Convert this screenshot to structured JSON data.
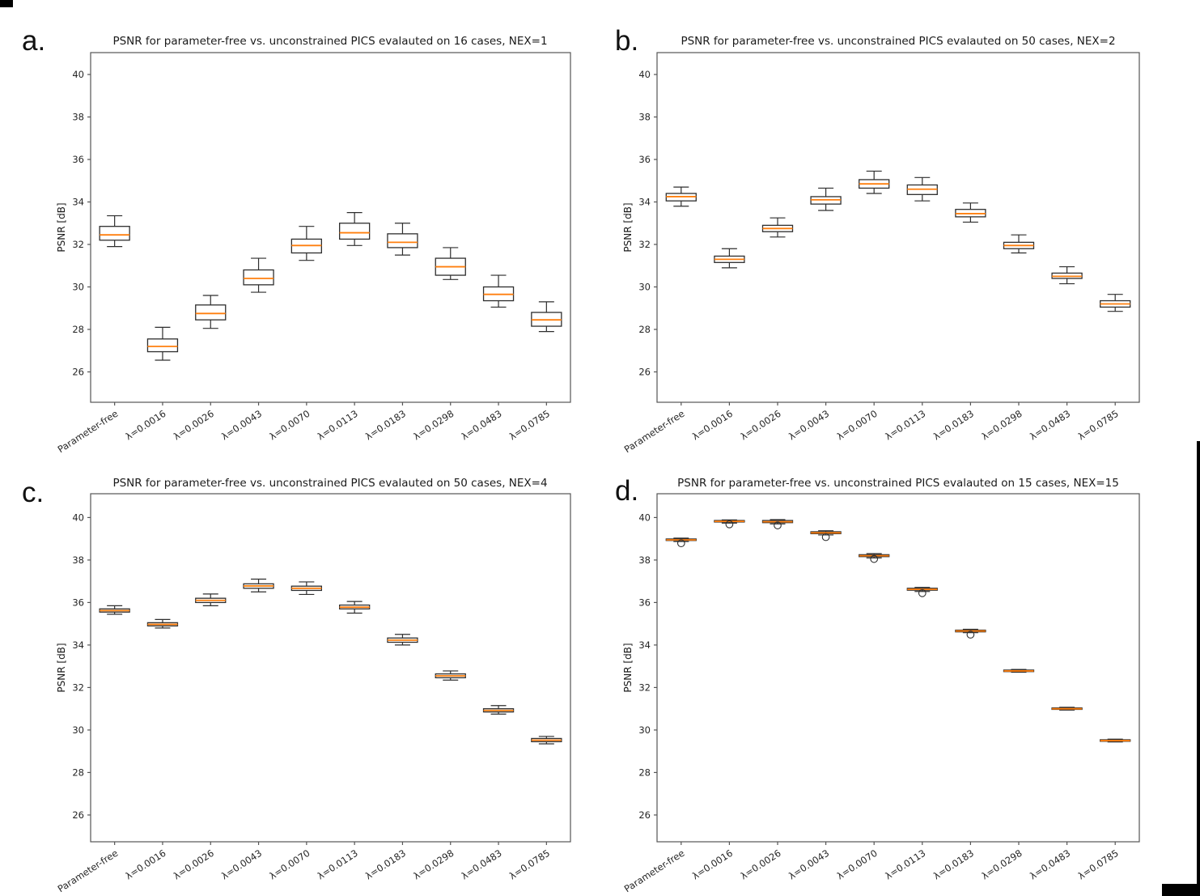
{
  "figure": {
    "background": "#ffffff",
    "spine_color": "#555555",
    "box_edge_color": "#2e2e2e",
    "median_color": "#ff7f0e",
    "text_color": "#1a1a1a"
  },
  "chart_data": [
    {
      "type": "boxplot",
      "panel_letter": "a.",
      "title": "PSNR for parameter-free vs. unconstrained PICS evalauted on 16 cases, NEX=1",
      "ylabel": "PSNR [dB]",
      "ylim": [
        24.57,
        41.03
      ],
      "yticks": [
        26,
        28,
        30,
        32,
        34,
        36,
        38,
        40
      ],
      "grid": false,
      "categories": [
        "Parameter-free",
        "λ=0.0016",
        "λ=0.0026",
        "λ=0.0043",
        "λ=0.0070",
        "λ=0.0113",
        "λ=0.0183",
        "λ=0.0298",
        "λ=0.0483",
        "λ=0.0785"
      ],
      "boxes": [
        {
          "whislo": 31.9,
          "q1": 32.2,
          "med": 32.45,
          "q3": 32.85,
          "whishi": 33.35,
          "fliers": []
        },
        {
          "whislo": 26.55,
          "q1": 26.95,
          "med": 27.2,
          "q3": 27.55,
          "whishi": 28.1,
          "fliers": []
        },
        {
          "whislo": 28.05,
          "q1": 28.45,
          "med": 28.75,
          "q3": 29.15,
          "whishi": 29.6,
          "fliers": []
        },
        {
          "whislo": 29.75,
          "q1": 30.1,
          "med": 30.4,
          "q3": 30.8,
          "whishi": 31.35,
          "fliers": []
        },
        {
          "whislo": 31.25,
          "q1": 31.6,
          "med": 31.95,
          "q3": 32.25,
          "whishi": 32.85,
          "fliers": []
        },
        {
          "whislo": 31.95,
          "q1": 32.25,
          "med": 32.55,
          "q3": 33.0,
          "whishi": 33.5,
          "fliers": []
        },
        {
          "whislo": 31.5,
          "q1": 31.85,
          "med": 32.1,
          "q3": 32.5,
          "whishi": 33.0,
          "fliers": []
        },
        {
          "whislo": 30.35,
          "q1": 30.55,
          "med": 30.95,
          "q3": 31.35,
          "whishi": 31.85,
          "fliers": []
        },
        {
          "whislo": 29.05,
          "q1": 29.35,
          "med": 29.65,
          "q3": 30.0,
          "whishi": 30.55,
          "fliers": []
        },
        {
          "whislo": 27.9,
          "q1": 28.15,
          "med": 28.45,
          "q3": 28.8,
          "whishi": 29.3,
          "fliers": []
        }
      ]
    },
    {
      "type": "boxplot",
      "panel_letter": "b.",
      "title": "PSNR for parameter-free vs. unconstrained PICS evalauted on 50 cases, NEX=2",
      "ylabel": "PSNR [dB]",
      "ylim": [
        24.57,
        41.03
      ],
      "yticks": [
        26,
        28,
        30,
        32,
        34,
        36,
        38,
        40
      ],
      "grid": false,
      "categories": [
        "Parameter-free",
        "λ=0.0016",
        "λ=0.0026",
        "λ=0.0043",
        "λ=0.0070",
        "λ=0.0113",
        "λ=0.0183",
        "λ=0.0298",
        "λ=0.0483",
        "λ=0.0785"
      ],
      "boxes": [
        {
          "whislo": 33.8,
          "q1": 34.05,
          "med": 34.25,
          "q3": 34.4,
          "whishi": 34.7,
          "fliers": []
        },
        {
          "whislo": 30.9,
          "q1": 31.15,
          "med": 31.3,
          "q3": 31.45,
          "whishi": 31.8,
          "fliers": []
        },
        {
          "whislo": 32.35,
          "q1": 32.6,
          "med": 32.75,
          "q3": 32.9,
          "whishi": 33.25,
          "fliers": []
        },
        {
          "whislo": 33.6,
          "q1": 33.9,
          "med": 34.1,
          "q3": 34.25,
          "whishi": 34.65,
          "fliers": []
        },
        {
          "whislo": 34.4,
          "q1": 34.65,
          "med": 34.85,
          "q3": 35.05,
          "whishi": 35.45,
          "fliers": []
        },
        {
          "whislo": 34.05,
          "q1": 34.35,
          "med": 34.6,
          "q3": 34.8,
          "whishi": 35.15,
          "fliers": []
        },
        {
          "whislo": 33.05,
          "q1": 33.3,
          "med": 33.45,
          "q3": 33.65,
          "whishi": 33.95,
          "fliers": []
        },
        {
          "whislo": 31.6,
          "q1": 31.8,
          "med": 31.95,
          "q3": 32.1,
          "whishi": 32.45,
          "fliers": []
        },
        {
          "whislo": 30.15,
          "q1": 30.4,
          "med": 30.5,
          "q3": 30.65,
          "whishi": 30.95,
          "fliers": []
        },
        {
          "whislo": 28.85,
          "q1": 29.05,
          "med": 29.2,
          "q3": 29.35,
          "whishi": 29.65,
          "fliers": []
        }
      ]
    },
    {
      "type": "boxplot",
      "panel_letter": "c.",
      "title": "PSNR for parameter-free vs. unconstrained PICS evalauted on 50 cases, NEX=4",
      "ylabel": "PSNR [dB]",
      "ylim": [
        24.74,
        41.12
      ],
      "yticks": [
        26,
        28,
        30,
        32,
        34,
        36,
        38,
        40
      ],
      "grid": false,
      "categories": [
        "Parameter-free",
        "λ=0.0016",
        "λ=0.0026",
        "λ=0.0043",
        "λ=0.0070",
        "λ=0.0113",
        "λ=0.0183",
        "λ=0.0298",
        "λ=0.0483",
        "λ=0.0785"
      ],
      "boxes": [
        {
          "whislo": 35.45,
          "q1": 35.55,
          "med": 35.62,
          "q3": 35.7,
          "whishi": 35.85,
          "fliers": []
        },
        {
          "whislo": 34.8,
          "q1": 34.9,
          "med": 34.97,
          "q3": 35.05,
          "whishi": 35.2,
          "fliers": []
        },
        {
          "whislo": 35.85,
          "q1": 36.0,
          "med": 36.1,
          "q3": 36.2,
          "whishi": 36.4,
          "fliers": []
        },
        {
          "whislo": 36.5,
          "q1": 36.67,
          "med": 36.78,
          "q3": 36.88,
          "whishi": 37.1,
          "fliers": []
        },
        {
          "whislo": 36.38,
          "q1": 36.57,
          "med": 36.67,
          "q3": 36.77,
          "whishi": 36.97,
          "fliers": []
        },
        {
          "whislo": 35.5,
          "q1": 35.7,
          "med": 35.78,
          "q3": 35.88,
          "whishi": 36.05,
          "fliers": []
        },
        {
          "whislo": 34.0,
          "q1": 34.13,
          "med": 34.23,
          "q3": 34.33,
          "whishi": 34.5,
          "fliers": []
        },
        {
          "whislo": 32.35,
          "q1": 32.46,
          "med": 32.55,
          "q3": 32.64,
          "whishi": 32.78,
          "fliers": []
        },
        {
          "whislo": 30.75,
          "q1": 30.85,
          "med": 30.92,
          "q3": 31.0,
          "whishi": 31.15,
          "fliers": []
        },
        {
          "whislo": 29.35,
          "q1": 29.45,
          "med": 29.52,
          "q3": 29.6,
          "whishi": 29.7,
          "fliers": []
        }
      ]
    },
    {
      "type": "boxplot",
      "panel_letter": "d.",
      "title": "PSNR for parameter-free vs. unconstrained PICS evalauted on 15 cases, NEX=15",
      "ylabel": "PSNR [dB]",
      "ylim": [
        24.74,
        41.12
      ],
      "yticks": [
        26,
        28,
        30,
        32,
        34,
        36,
        38,
        40
      ],
      "grid": false,
      "categories": [
        "Parameter-free",
        "λ=0.0016",
        "λ=0.0026",
        "λ=0.0043",
        "λ=0.0070",
        "λ=0.0113",
        "λ=0.0183",
        "λ=0.0298",
        "λ=0.0483",
        "λ=0.0785"
      ],
      "boxes": [
        {
          "whislo": 38.87,
          "q1": 38.92,
          "med": 38.95,
          "q3": 38.99,
          "whishi": 39.03,
          "fliers": [
            38.79
          ]
        },
        {
          "whislo": 39.74,
          "q1": 39.79,
          "med": 39.82,
          "q3": 39.86,
          "whishi": 39.89,
          "fliers": [
            39.68
          ]
        },
        {
          "whislo": 39.7,
          "q1": 39.76,
          "med": 39.8,
          "q3": 39.86,
          "whishi": 39.9,
          "fliers": [
            39.63
          ]
        },
        {
          "whislo": 39.18,
          "q1": 39.24,
          "med": 39.28,
          "q3": 39.33,
          "whishi": 39.38,
          "fliers": [
            39.08
          ]
        },
        {
          "whislo": 38.1,
          "q1": 38.16,
          "med": 38.2,
          "q3": 38.25,
          "whishi": 38.3,
          "fliers": [
            38.05
          ]
        },
        {
          "whislo": 36.52,
          "q1": 36.58,
          "med": 36.62,
          "q3": 36.67,
          "whishi": 36.71,
          "fliers": [
            36.44
          ]
        },
        {
          "whislo": 34.58,
          "q1": 34.62,
          "med": 34.66,
          "q3": 34.7,
          "whishi": 34.74,
          "fliers": [
            34.49
          ]
        },
        {
          "whislo": 32.72,
          "q1": 32.75,
          "med": 32.78,
          "q3": 32.82,
          "whishi": 32.85,
          "fliers": []
        },
        {
          "whislo": 30.94,
          "q1": 30.97,
          "med": 31.0,
          "q3": 31.04,
          "whishi": 31.07,
          "fliers": []
        },
        {
          "whislo": 29.44,
          "q1": 29.47,
          "med": 29.5,
          "q3": 29.54,
          "whishi": 29.57,
          "fliers": []
        }
      ]
    }
  ]
}
